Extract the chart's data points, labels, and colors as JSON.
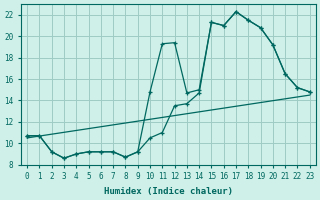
{
  "xlabel": "Humidex (Indice chaleur)",
  "background_color": "#cef0e8",
  "grid_color": "#9eccc4",
  "line_color": "#006860",
  "xlim": [
    -0.5,
    23.5
  ],
  "ylim": [
    8,
    23
  ],
  "xticks": [
    0,
    1,
    2,
    3,
    4,
    5,
    6,
    7,
    8,
    9,
    10,
    11,
    12,
    13,
    14,
    15,
    16,
    17,
    18,
    19,
    20,
    21,
    22,
    23
  ],
  "yticks": [
    8,
    10,
    12,
    14,
    16,
    18,
    20,
    22
  ],
  "series1_x": [
    0,
    1,
    2,
    3,
    4,
    5,
    6,
    7,
    8,
    9,
    10,
    11,
    12,
    13,
    14,
    15,
    16,
    17,
    18,
    19,
    20,
    21,
    22,
    23
  ],
  "series1_y": [
    10.7,
    10.7,
    9.2,
    8.6,
    9.0,
    9.2,
    9.2,
    9.2,
    8.7,
    9.2,
    14.8,
    19.3,
    19.4,
    14.7,
    15.0,
    21.3,
    21.0,
    22.3,
    21.5,
    20.8,
    19.2,
    16.5,
    15.2,
    14.8
  ],
  "series2_x": [
    0,
    1,
    2,
    3,
    4,
    5,
    6,
    7,
    8,
    9,
    10,
    11,
    12,
    13,
    14,
    15,
    16,
    17,
    18,
    19,
    20,
    21,
    22,
    23
  ],
  "series2_y": [
    10.7,
    10.7,
    9.2,
    8.6,
    9.0,
    9.2,
    9.2,
    9.2,
    8.7,
    9.2,
    10.5,
    11.0,
    13.5,
    13.7,
    14.7,
    21.3,
    21.0,
    22.3,
    21.5,
    20.8,
    19.2,
    16.5,
    15.2,
    14.8
  ],
  "series3_x": [
    0,
    23
  ],
  "series3_y": [
    10.5,
    14.5
  ]
}
